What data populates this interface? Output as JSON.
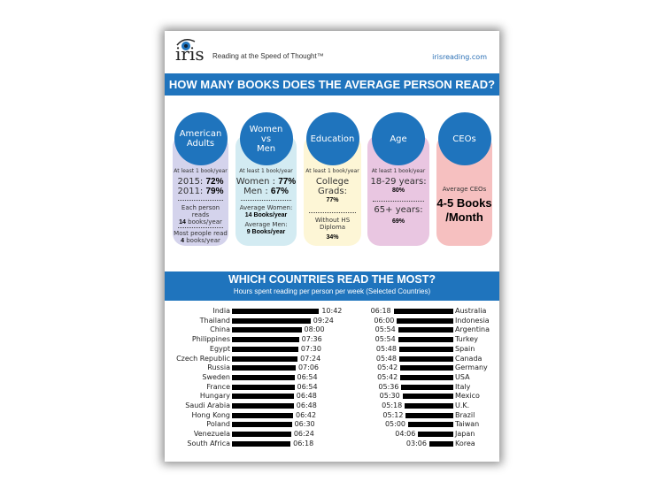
{
  "header": {
    "logo_text": "iris",
    "tagline": "Reading at the Speed of Thought™",
    "url": "irisreading.com"
  },
  "section1": {
    "title": "HOW MANY BOOKS DOES THE AVERAGE PERSON READ?",
    "cards": [
      {
        "title_l1": "American",
        "title_l2": "Adults",
        "label": "At least 1 book/year",
        "r1": "2015:",
        "v1": "72%",
        "r2": "2011:",
        "v2": "79%",
        "n1a": "Each person reads",
        "n1b": "14",
        "n1c": "books/year",
        "n2a": "Most people read",
        "n2b": "4",
        "n2c": "books/year",
        "color": "#d4d3ec"
      },
      {
        "title_l1": "Women",
        "title_l2": "vs",
        "title_l3": "Men",
        "label": "At least 1 book/year",
        "r1": "Women :",
        "v1": "77%",
        "r2": "Men :",
        "v2": "67%",
        "n1a": "Average Women:",
        "n1b": "14 Books/year",
        "n2a": "Average Men:",
        "n2b": "9 Books/year",
        "color": "#d3ebf2"
      },
      {
        "title": "Education",
        "label": "At least 1 book/year",
        "r1": "College Grads:",
        "v1": "77%",
        "r2": "Without HS Diploma",
        "v2": "34%",
        "color": "#fdf6d6"
      },
      {
        "title": "Age",
        "label": "At least 1 book/year",
        "r1": "18-29 years:",
        "v1": "80%",
        "r2": "65+ years:",
        "v2": "69%",
        "color": "#e9c6e1"
      },
      {
        "title": "CEOs",
        "r1": "Average CEOs",
        "v1": "4-5 Books",
        "v2": "/Month",
        "color": "#f6c0c0"
      }
    ]
  },
  "section2": {
    "title": "WHICH COUNTRIES READ THE MOST?",
    "subtitle": "Hours spent reading per person per week (Selected Countries)"
  },
  "chart_data": {
    "type": "bar",
    "orientation": "horizontal",
    "unit": "hours:minutes per week",
    "left": {
      "categories": [
        "India",
        "Thailand",
        "China",
        "Philippines",
        "Egypt",
        "Czech Republic",
        "Russia",
        "Sweden",
        "France",
        "Hungary",
        "Saudi Arabia",
        "Hong Kong",
        "Poland",
        "Venezuela",
        "South Africa"
      ],
      "values": [
        "10:42",
        "09:24",
        "08:00",
        "07:36",
        "07:30",
        "07:24",
        "07:06",
        "06:54",
        "06:54",
        "06:48",
        "06:48",
        "06:42",
        "06:30",
        "06:24",
        "06:18"
      ]
    },
    "right": {
      "categories": [
        "Australia",
        "Indonesia",
        "Argentina",
        "Turkey",
        "Spain",
        "Canada",
        "Germany",
        "USA",
        "Italy",
        "Mexico",
        "U.K.",
        "Brazil",
        "Taiwan",
        "Japan",
        "Korea"
      ],
      "values": [
        "06:18",
        "06:00",
        "05:54",
        "05:54",
        "05:48",
        "05:48",
        "05:42",
        "05:42",
        "05:36",
        "05:30",
        "05:18",
        "05:12",
        "05:00",
        "04:06",
        "03:06"
      ]
    },
    "bar_color": "#000000"
  }
}
